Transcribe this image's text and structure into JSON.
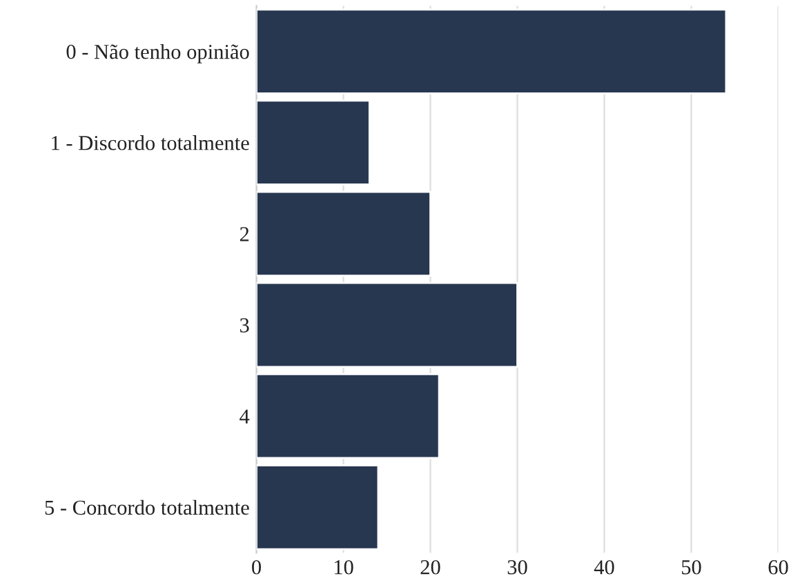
{
  "chart_data": {
    "type": "bar",
    "orientation": "horizontal",
    "categories": [
      "0 - Não tenho opinião",
      "1 - Discordo totalmente",
      "2",
      "3",
      "4",
      "5 - Concordo totalmente"
    ],
    "values": [
      54,
      13,
      20,
      30,
      21,
      14
    ],
    "color": "#283750",
    "xlim": [
      0,
      60
    ],
    "xticks": [
      0,
      10,
      20,
      30,
      40,
      50,
      60
    ],
    "grid": "x"
  }
}
